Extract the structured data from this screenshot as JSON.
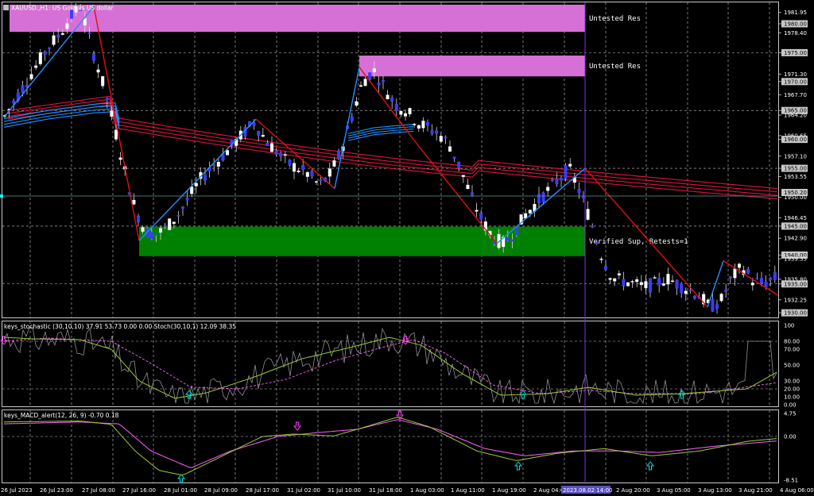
{
  "window": {
    "symbol_title": "XAUUSD.,H1: US Gold vs US dollar"
  },
  "zones": [
    {
      "label": "Untested Res",
      "top": 1983.3,
      "bottom": 1978.6,
      "color": "#d670d6"
    },
    {
      "label": "Untested Res",
      "top": 1974.5,
      "bottom": 1970.9,
      "color": "#d670d6"
    },
    {
      "label": "Verified Sup, Retests=1",
      "top": 1944.9,
      "bottom": 1939.8,
      "color": "#008000"
    }
  ],
  "price_axis": {
    "ticks": [
      "1981.95",
      "1980.00",
      "1978.40",
      "1975.00",
      "1971.30",
      "1970.00",
      "1967.70",
      "1965.00",
      "1964.20",
      "1960.65",
      "1960.00",
      "1957.10",
      "1955.00",
      "1953.55",
      "1950.00",
      "1946.45",
      "1945.00",
      "1942.90",
      "1940.00",
      "1939.35",
      "1935.80",
      "1935.00",
      "1932.25",
      "1930.00"
    ],
    "highlight_ticks": [
      "1980.00",
      "1975.00",
      "1970.00",
      "1965.00",
      "1960.00",
      "1955.00",
      "1945.00",
      "1940.00",
      "1935.00",
      "1930.00"
    ],
    "current_price": "1950.20",
    "range": [
      1929.2,
      1983.7
    ]
  },
  "stoch_panel": {
    "title": "keys_stochastic (30,10,10) 37.91 53.73 0.00 0.00 Stoch(30,10,1) 12.09 38.35",
    "ticks": [
      "100",
      "80.00",
      "70.00",
      "50.00",
      "30.00",
      "20.00",
      "10.00",
      "0.00"
    ]
  },
  "macd_panel": {
    "title": "keys_MACD_alert(12, 26, 9) -0.70 0.18",
    "ticks": [
      "4.75",
      "0.00",
      "-8.51"
    ]
  },
  "time_axis": {
    "labels": [
      "26 Jul 2023",
      "26 Jul 23:00",
      "27 Jul 08:00",
      "27 Jul 16:00",
      "28 Jul 01:00",
      "28 Jul 09:00",
      "28 Jul 17:00",
      "31 Jul 02:00",
      "31 Jul 10:00",
      "31 Jul 18:00",
      "1 Aug 03:00",
      "1 Aug 11:00",
      "1 Aug 19:00",
      "2 Aug 04:00",
      "2 Aug 20:00",
      "3 Aug 05:00",
      "3 Aug 13:00",
      "3 Aug 21:00",
      "4 Aug 06:00"
    ],
    "cursor_label": "2023.08.02 14:00"
  },
  "colors": {
    "background": "#000000",
    "grid": "#c8c8c8",
    "bull_candle": "#ffffff",
    "bear_candle": "#3a3aff",
    "ma_red": "#dc143c",
    "ma_blue": "#1e90ff",
    "zigzag_up": "#1e90ff",
    "zigzag_down": "#e01010",
    "stoch_main": "#9acd32",
    "macd_signal": "#ff60ff",
    "arrow_up": "#00e0e0",
    "arrow_down": "#ff40ff"
  },
  "chart_data": {
    "type": "candlestick",
    "symbol": "XAUUSD.",
    "timeframe": "H1",
    "ylim": [
      1929.2,
      1983.7
    ],
    "price_path": [
      1964,
      1967,
      1970,
      1973,
      1976,
      1978,
      1981,
      1983,
      1976,
      1970,
      1963,
      1955,
      1948,
      1944,
      1943.5,
      1945,
      1947,
      1950,
      1953,
      1955,
      1957,
      1959,
      1961,
      1963,
      1960,
      1958,
      1956,
      1955,
      1954,
      1952,
      1954,
      1958,
      1964,
      1970,
      1972,
      1969,
      1966,
      1965,
      1963,
      1962,
      1961,
      1959,
      1955,
      1950,
      1946,
      1943,
      1942,
      1944,
      1947,
      1949,
      1951,
      1953,
      1955,
      1951,
      1946,
      1940,
      1936,
      1935.5,
      1935,
      1934.5,
      1935,
      1936,
      1935,
      1934,
      1933,
      1931,
      1932,
      1936,
      1938,
      1935.5,
      1935,
      1936
    ],
    "zigzag": [
      1964,
      1983,
      1942.5,
      1963.5,
      1951.5,
      1972.5,
      1960,
      1942,
      1955,
      1931,
      1939,
      1933
    ],
    "ma_red_start": 1965.5,
    "ma_red_end": 1951.5,
    "ma_blue": [
      1964.5,
      1965.5,
      1961,
      1960.5,
      1961,
      1962
    ]
  }
}
